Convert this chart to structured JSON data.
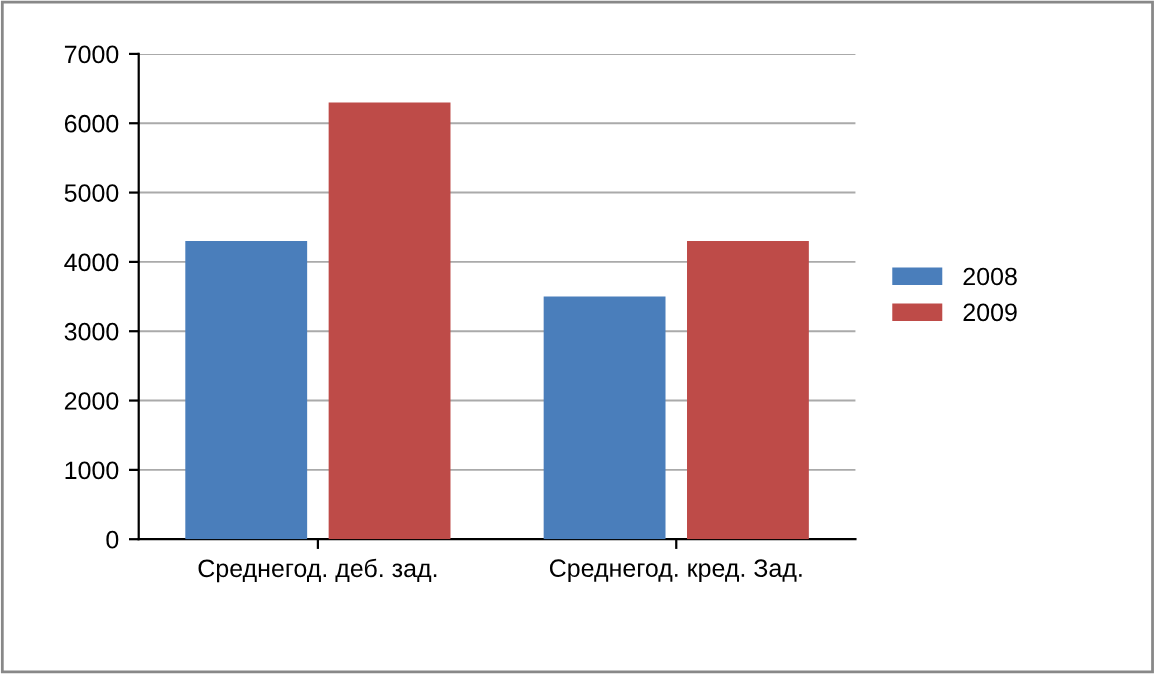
{
  "chart_data": {
    "type": "bar",
    "categories": [
      "Среднегод. деб. зад.",
      "Среднегод. кред. Зад."
    ],
    "series": [
      {
        "name": "2008",
        "color": "#4a7ebb",
        "values": [
          4300,
          3500
        ]
      },
      {
        "name": "2009",
        "color": "#be4b48",
        "values": [
          6300,
          4300
        ]
      }
    ],
    "ylim": [
      0,
      7000
    ],
    "yticks": [
      0,
      1000,
      2000,
      3000,
      4000,
      5000,
      6000,
      7000
    ],
    "grid": "y",
    "legend": "right"
  }
}
